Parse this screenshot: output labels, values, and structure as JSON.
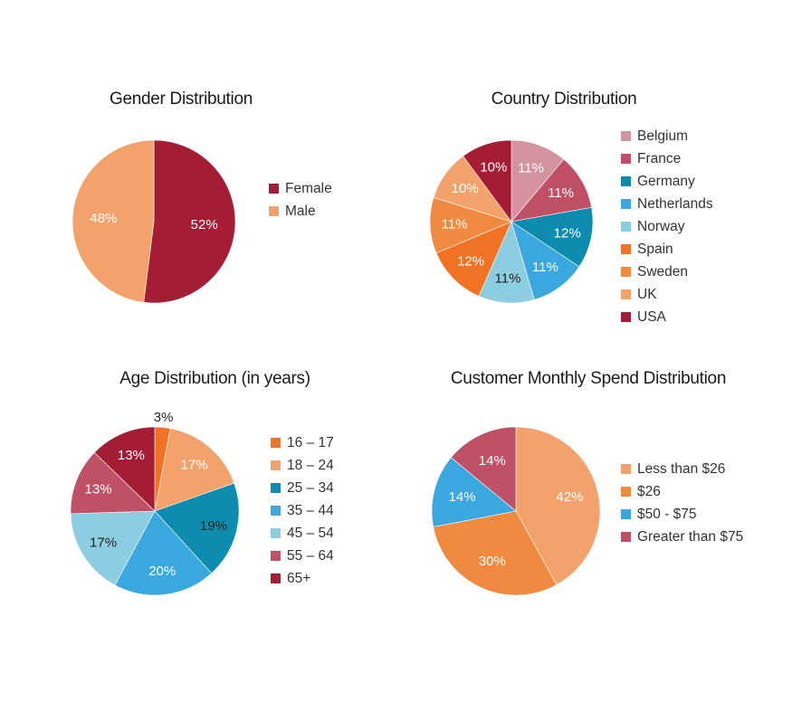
{
  "chart_data": [
    {
      "id": "gender",
      "type": "pie",
      "title": "Gender Distribution",
      "labels": [
        "Female",
        "Male"
      ],
      "values": [
        52,
        48
      ],
      "value_labels": [
        "52%",
        "48%"
      ],
      "colors": [
        "#a51c35",
        "#f4a26b"
      ],
      "label_colors": [
        "#ffffff",
        "#ffffff"
      ],
      "legend": "right"
    },
    {
      "id": "country",
      "type": "pie",
      "title": "Country Distribution",
      "labels": [
        "Belgium",
        "France",
        "Germany",
        "Netherlands",
        "Norway",
        "Spain",
        "Sweden",
        "UK",
        "USA"
      ],
      "values": [
        11,
        11,
        12,
        11,
        11,
        12,
        11,
        10,
        10
      ],
      "value_labels": [
        "11%",
        "11%",
        "12%",
        "11%",
        "11%",
        "12%",
        "11%",
        "10%",
        "10%"
      ],
      "colors": [
        "#d4949f",
        "#c05066",
        "#0d8cb0",
        "#3aa7de",
        "#8dcde2",
        "#ef7225",
        "#f08a41",
        "#f4a26b",
        "#a51c35"
      ],
      "label_colors": [
        "#ffffff",
        "#ffffff",
        "#ffffff",
        "#ffffff",
        "#222222",
        "#ffffff",
        "#ffffff",
        "#ffffff",
        "#ffffff"
      ],
      "legend": "right"
    },
    {
      "id": "age",
      "type": "pie",
      "title": "Age Distribution (in years)",
      "labels": [
        "16 – 17",
        "18 – 24",
        "25 – 34",
        "35 – 44",
        "45 – 54",
        "55 – 64",
        "65+"
      ],
      "values": [
        3,
        17,
        19,
        20,
        17,
        13,
        13
      ],
      "value_labels": [
        "3%",
        "17%",
        "19%",
        "20%",
        "17%",
        "13%",
        "13%"
      ],
      "colors": [
        "#ef7225",
        "#f4a26b",
        "#0d8cb0",
        "#3aa7de",
        "#8dcde2",
        "#c05066",
        "#a51c35"
      ],
      "label_colors": [
        "#222222",
        "#ffffff",
        "#222222",
        "#ffffff",
        "#222222",
        "#ffffff",
        "#ffffff"
      ],
      "legend": "right"
    },
    {
      "id": "spend",
      "type": "pie",
      "title": "Customer Monthly Spend Distribution",
      "labels": [
        "Less than $26",
        "$26",
        "$50 - $75",
        "Greater than $75"
      ],
      "values": [
        42,
        30,
        14,
        14
      ],
      "value_labels": [
        "42%",
        "30%",
        "14%",
        "14%"
      ],
      "colors": [
        "#f4a26b",
        "#f08a41",
        "#3aa7de",
        "#c05066"
      ],
      "label_colors": [
        "#ffffff",
        "#ffffff",
        "#ffffff",
        "#ffffff"
      ],
      "legend": "right"
    }
  ]
}
